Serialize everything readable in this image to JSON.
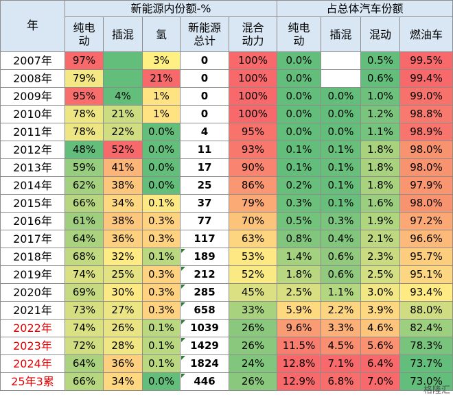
{
  "header": {
    "year_label": "年",
    "group1_title": "新能源内份额-%",
    "group2_title": "占总体汽车份额",
    "cols": [
      "纯电动",
      "插混",
      "氢",
      "新能源总计",
      "混合动力",
      "纯电动",
      "插混",
      "混动",
      "燃油车"
    ]
  },
  "rows": [
    {
      "year": "2007年",
      "red": false,
      "cells": [
        "97%",
        "",
        "3%",
        "0",
        "100%",
        "0.0%",
        "",
        "0.5%",
        "99.5%"
      ],
      "colors": [
        "#f8696b",
        "#63be7b",
        "#fff084",
        "#ffffff",
        "#f8696b",
        "#63be7b",
        "#ffffff",
        "#63be7b",
        "#f8696b"
      ],
      "flag": false
    },
    {
      "year": "2008年",
      "red": false,
      "cells": [
        "79%",
        "",
        "21%",
        "0",
        "100%",
        "0.0%",
        "",
        "0.6%",
        "99.4%"
      ],
      "colors": [
        "#f3e883",
        "#63be7b",
        "#f8696b",
        "#ffffff",
        "#f8696b",
        "#63be7b",
        "#ffffff",
        "#63be7b",
        "#f8696b"
      ],
      "flag": false
    },
    {
      "year": "2009年",
      "red": false,
      "cells": [
        "95%",
        "4%",
        "1%",
        "0",
        "100%",
        "0.0%",
        "0.0%",
        "1.0%",
        "99.0%"
      ],
      "colors": [
        "#f86e6c",
        "#63be7b",
        "#ffe383",
        "#ffffff",
        "#f8696b",
        "#63be7b",
        "#63be7b",
        "#6ec17c",
        "#f8726c"
      ],
      "flag": false
    },
    {
      "year": "2010年",
      "red": false,
      "cells": [
        "78%",
        "21%",
        "1%",
        "0",
        "100%",
        "0.0%",
        "0.0%",
        "1.2%",
        "98.8%"
      ],
      "colors": [
        "#eee683",
        "#cbdc81",
        "#ffe383",
        "#ffffff",
        "#f8696b",
        "#63be7b",
        "#63be7b",
        "#7bc47d",
        "#f8796e"
      ],
      "flag": false
    },
    {
      "year": "2011年",
      "red": false,
      "cells": [
        "78%",
        "22%",
        "0.0%",
        "4",
        "95%",
        "0.0%",
        "0.0%",
        "1.1%",
        "98.9%"
      ],
      "colors": [
        "#eee683",
        "#d0dd81",
        "#63be7b",
        "#ffffff",
        "#f8736c",
        "#63be7b",
        "#63be7b",
        "#75c37c",
        "#f8756d"
      ],
      "flag": false
    },
    {
      "year": "2012年",
      "red": false,
      "cells": [
        "48%",
        "52%",
        "0.0%",
        "11",
        "93%",
        "0.1%",
        "0.1%",
        "1.8%",
        "98.0%"
      ],
      "colors": [
        "#63be7b",
        "#f8696b",
        "#63be7b",
        "#ffffff",
        "#f9786e",
        "#63be7b",
        "#67bf7b",
        "#a9d27f",
        "#f8936f"
      ],
      "flag": false
    },
    {
      "year": "2013年",
      "red": false,
      "cells": [
        "59%",
        "41%",
        "0.0%",
        "17",
        "90%",
        "0.1%",
        "0.1%",
        "1.8%",
        "98.0%"
      ],
      "colors": [
        "#96cd7e",
        "#fcb578",
        "#63be7b",
        "#ffffff",
        "#f98470",
        "#63be7b",
        "#67bf7b",
        "#a9d27f",
        "#f8936f"
      ],
      "flag": false
    },
    {
      "year": "2014年",
      "red": false,
      "cells": [
        "62%",
        "38%",
        "0.0%",
        "25",
        "86%",
        "0.2%",
        "0.1%",
        "1.8%",
        "97.9%"
      ],
      "colors": [
        "#a4d17f",
        "#fdc67d",
        "#63be7b",
        "#ffffff",
        "#f99772",
        "#67bf7b",
        "#67bf7b",
        "#a9d27f",
        "#f99670"
      ],
      "flag": false
    },
    {
      "year": "2015年",
      "red": false,
      "cells": [
        "66%",
        "34%",
        "0.1%",
        "37",
        "79%",
        "0.3%",
        "0.1%",
        "1.6%",
        "98.0%"
      ],
      "colors": [
        "#b6d680",
        "#fed880",
        "#fde983",
        "#ffffff",
        "#fbaa75",
        "#6bc07c",
        "#67bf7b",
        "#9bce7e",
        "#f8936f"
      ],
      "flag": false
    },
    {
      "year": "2016年",
      "red": false,
      "cells": [
        "61%",
        "38%",
        "0.3%",
        "77",
        "70%",
        "0.5%",
        "0.3%",
        "1.9%",
        "97.2%"
      ],
      "colors": [
        "#9fcf7e",
        "#fdc67d",
        "#fed27f",
        "#ffffff",
        "#fcc47b",
        "#74c37c",
        "#7ac47d",
        "#b0d57f",
        "#fba875"
      ],
      "flag": false
    },
    {
      "year": "2017年",
      "red": false,
      "cells": [
        "64%",
        "36%",
        "0.3%",
        "117",
        "63%",
        "0.8%",
        "0.4%",
        "2.1%",
        "96.6%"
      ],
      "colors": [
        "#abd37f",
        "#fdd07f",
        "#fed27f",
        "#ffffff",
        "#fdd580",
        "#82c67d",
        "#82c67d",
        "#bdd880",
        "#fcb979"
      ],
      "flag": false
    },
    {
      "year": "2018年",
      "red": false,
      "cells": [
        "68%",
        "32%",
        "0.1%",
        "189",
        "53%",
        "1.4%",
        "0.6%",
        "2.3%",
        "95.7%"
      ],
      "colors": [
        "#c1d980",
        "#feeb84",
        "#b9d880",
        "#ffffff",
        "#fde883",
        "#a4d17f",
        "#91ca7e",
        "#c8db81",
        "#fdcd7e"
      ],
      "flag": true
    },
    {
      "year": "2019年",
      "red": false,
      "cells": [
        "74%",
        "25%",
        "0.3%",
        "212",
        "52%",
        "1.8%",
        "0.6%",
        "2.5%",
        "95.1%"
      ],
      "colors": [
        "#dae183",
        "#e4e383",
        "#fed27f",
        "#ffffff",
        "#f9ea84",
        "#b8d780",
        "#91ca7e",
        "#d4de82",
        "#fdd681"
      ],
      "flag": true
    },
    {
      "year": "2020年",
      "red": false,
      "cells": [
        "69%",
        "30%",
        "0.3%",
        "285",
        "45%",
        "2.5%",
        "1.1%",
        "3.0%",
        "93.4%"
      ],
      "colors": [
        "#c6da81",
        "#fbea84",
        "#fed27f",
        "#ffffff",
        "#dbe182",
        "#d7df82",
        "#b3d680",
        "#f1e784",
        "#feeb84"
      ],
      "flag": true
    },
    {
      "year": "2021年",
      "red": false,
      "cells": [
        "73%",
        "27%",
        "0.3%",
        "658",
        "33%",
        "5.9%",
        "2.2%",
        "3.9%",
        "88.0%"
      ],
      "colors": [
        "#d5df82",
        "#ece583",
        "#fed27f",
        "#ffffff",
        "#a9d27f",
        "#fed980",
        "#fdd580",
        "#fed880",
        "#cfdc81"
      ],
      "flag": true
    },
    {
      "year": "2022年",
      "red": true,
      "cells": [
        "74%",
        "26%",
        "0.1%",
        "1039",
        "26%",
        "9.6%",
        "3.3%",
        "4.6%",
        "82.4%"
      ],
      "colors": [
        "#dae183",
        "#e8e483",
        "#b9d880",
        "#ffffff",
        "#8ac87d",
        "#fa9c73",
        "#fcb078",
        "#fdc57c",
        "#9ccf7e"
      ],
      "flag": true
    },
    {
      "year": "2023年",
      "red": true,
      "cells": [
        "72%",
        "28%",
        "0.1%",
        "1429",
        "26%",
        "11.5%",
        "4.5%",
        "5.6%",
        "78.3%"
      ],
      "colors": [
        "#d0dd81",
        "#f0e684",
        "#b9d880",
        "#ffffff",
        "#8ac87d",
        "#f97d6f",
        "#fa8e71",
        "#fa9272",
        "#79c47d"
      ],
      "flag": true
    },
    {
      "year": "2024年",
      "red": true,
      "cells": [
        "64%",
        "36%",
        "0.1%",
        "1824",
        "24%",
        "12.8%",
        "7.1%",
        "6.4%",
        "73.7%"
      ],
      "colors": [
        "#abd37f",
        "#fdd07f",
        "#b9d880",
        "#ffffff",
        "#81c67d",
        "#f8696b",
        "#f8696b",
        "#f8696b",
        "#63be7b"
      ],
      "flag": true
    },
    {
      "year": "25年3累",
      "red": true,
      "cells": [
        "66%",
        "34%",
        "0.0%",
        "446",
        "26%",
        "12.9%",
        "6.8%",
        "7.0%",
        "73.0%"
      ],
      "colors": [
        "#b6d680",
        "#fed880",
        "#63be7b",
        "#ffffff",
        "#8ac87d",
        "#f8696b",
        "#f86e6c",
        "#f8696b",
        "#63be7b"
      ],
      "flag": true
    }
  ],
  "watermark": "格隆汇"
}
